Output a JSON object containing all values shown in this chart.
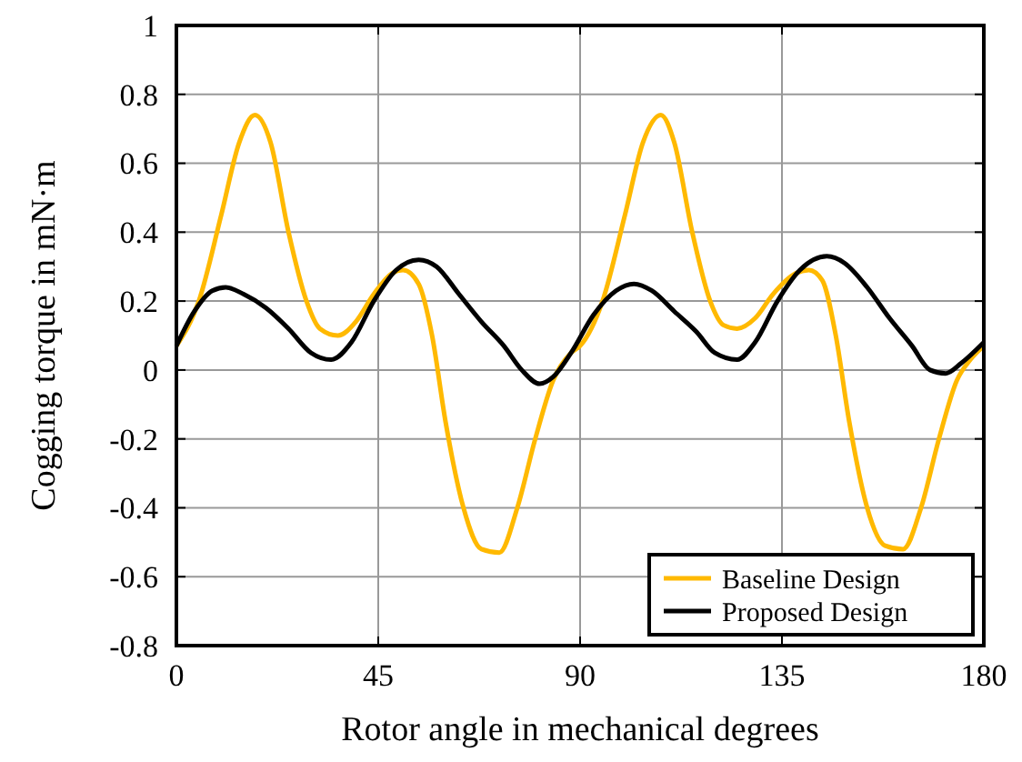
{
  "chart_data": {
    "type": "line",
    "xlabel": "Rotor angle in mechanical degrees",
    "ylabel": "Cogging torque in mN·m",
    "xlim": [
      0,
      180
    ],
    "xticks": [
      0,
      45,
      90,
      135,
      180
    ],
    "ylim": [
      -0.8,
      1
    ],
    "yticks": [
      -0.8,
      -0.6,
      -0.4,
      -0.2,
      0,
      0.2,
      0.4,
      0.6,
      0.8,
      1
    ],
    "grid": true,
    "legend": "bottom right",
    "line_style": "solid",
    "marker": "none",
    "series": [
      {
        "name": "Baseline Design",
        "color": "#ffb900",
        "x": [
          0,
          5,
          10,
          14,
          17.5,
          21,
          25,
          29,
          32,
          36,
          40,
          44,
          48,
          50.5,
          54,
          57,
          60,
          64,
          68,
          72,
          76,
          80,
          84,
          88,
          90,
          95,
          100,
          104,
          108,
          111,
          115,
          119,
          122,
          125,
          129,
          133,
          138,
          141,
          144,
          147,
          150,
          154,
          158,
          162,
          166,
          170,
          174,
          177,
          180
        ],
        "values": [
          0.07,
          0.2,
          0.45,
          0.66,
          0.74,
          0.66,
          0.4,
          0.2,
          0.12,
          0.1,
          0.14,
          0.22,
          0.28,
          0.29,
          0.25,
          0.1,
          -0.15,
          -0.4,
          -0.52,
          -0.53,
          -0.4,
          -0.2,
          -0.03,
          0.05,
          0.07,
          0.2,
          0.45,
          0.66,
          0.74,
          0.66,
          0.4,
          0.2,
          0.13,
          0.12,
          0.15,
          0.22,
          0.28,
          0.29,
          0.26,
          0.1,
          -0.15,
          -0.4,
          -0.51,
          -0.52,
          -0.4,
          -0.2,
          -0.03,
          0.03,
          0.07
        ]
      },
      {
        "name": "Proposed Design",
        "color": "#000000",
        "x": [
          0,
          4,
          8,
          11,
          15,
          20,
          25,
          30,
          34.5,
          39,
          44,
          49,
          54,
          58,
          63,
          68,
          73,
          77,
          81,
          84,
          88,
          93,
          98,
          102,
          106,
          111,
          116,
          120,
          125,
          129,
          134,
          139,
          145,
          149,
          154,
          159,
          164,
          168,
          171.5,
          175,
          180
        ],
        "values": [
          0.07,
          0.17,
          0.23,
          0.24,
          0.22,
          0.18,
          0.12,
          0.05,
          0.03,
          0.08,
          0.2,
          0.29,
          0.32,
          0.3,
          0.22,
          0.14,
          0.07,
          0,
          -0.04,
          -0.02,
          0.05,
          0.16,
          0.23,
          0.25,
          0.23,
          0.17,
          0.11,
          0.05,
          0.03,
          0.08,
          0.2,
          0.29,
          0.33,
          0.31,
          0.24,
          0.15,
          0.07,
          0,
          -0.01,
          0.02,
          0.08
        ]
      }
    ]
  }
}
